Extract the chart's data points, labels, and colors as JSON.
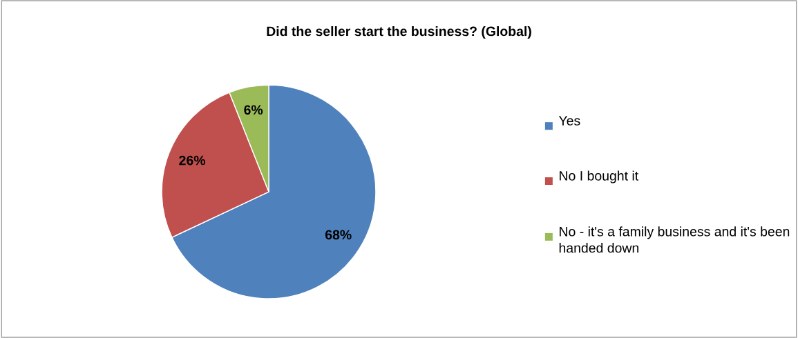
{
  "chart_data": {
    "type": "pie",
    "title": "Did the seller start the business? (Global)",
    "categories": [
      "Yes",
      "No I bought it",
      "No - it's a family business and it's been handed down"
    ],
    "values": [
      68,
      26,
      6
    ],
    "colors": [
      "#4f81bd",
      "#c0504d",
      "#9bbb59"
    ],
    "value_labels": [
      "68%",
      "26%",
      "6%"
    ],
    "legend": "right"
  }
}
